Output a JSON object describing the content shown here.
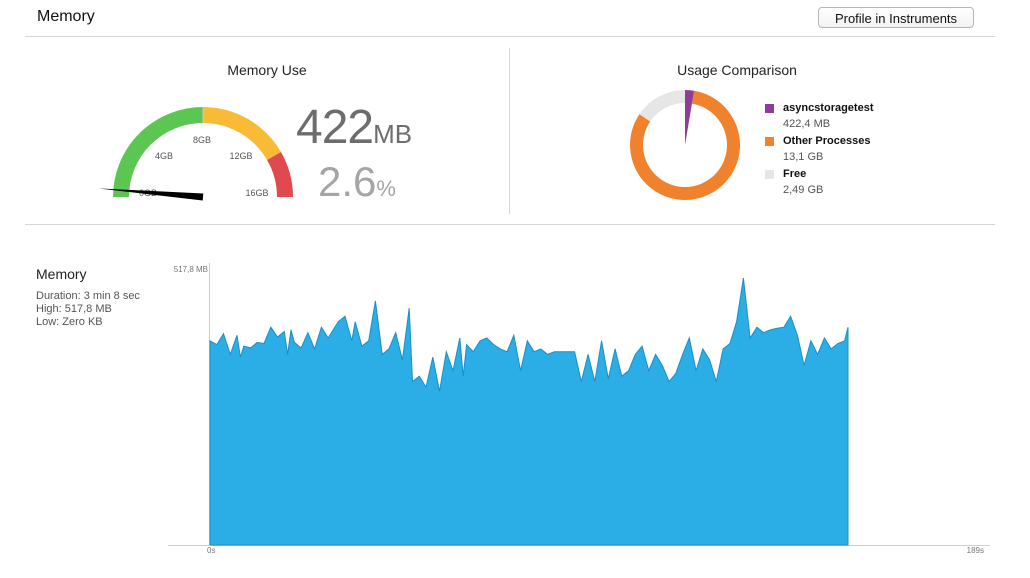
{
  "header": {
    "title": "Memory",
    "profile_button": "Profile in Instruments"
  },
  "gauge": {
    "title": "Memory Use",
    "tick_labels": [
      "4GB",
      "8GB",
      "12GB",
      "16GB",
      "0GB"
    ],
    "value_number": "422",
    "value_unit": "MB",
    "percent_number": "2.6",
    "percent_unit": "%",
    "percent_used": 2.6,
    "colors": {
      "green": "#5cc653",
      "yellow": "#f9bb35",
      "red": "#e0494d"
    }
  },
  "usage": {
    "title": "Usage Comparison",
    "items": [
      {
        "name": "asyncstoragetest",
        "value": "422,4 MB",
        "gb": 0.4224,
        "color": "#8e3d96"
      },
      {
        "name": "Other Processes",
        "value": "13,1 GB",
        "gb": 13.1,
        "color": "#f0822d"
      },
      {
        "name": "Free",
        "value": "2,49 GB",
        "gb": 2.49,
        "color": "#e6e6e6"
      }
    ]
  },
  "graph": {
    "title": "Memory",
    "duration": "Duration: 3 min 8 sec",
    "high": "High: 517,8 MB",
    "low": "Low: Zero KB"
  },
  "chart_data": {
    "type": "area",
    "ylabel_top": "517,8 MB",
    "x_start_label": "0s",
    "x_end_label": "189s",
    "xlim": [
      0,
      189
    ],
    "ylim": [
      0,
      517.8
    ],
    "color": "#2aaee5",
    "x": [
      0,
      2,
      4,
      6,
      8,
      9,
      10,
      12,
      14,
      16,
      18,
      20,
      22,
      23,
      24,
      25,
      27,
      29,
      31,
      33,
      35,
      38,
      40,
      42,
      43,
      45,
      47,
      49,
      51,
      53,
      55,
      57,
      59,
      60,
      62,
      64,
      66,
      68,
      70,
      72,
      74,
      75,
      76,
      78,
      80,
      82,
      84,
      86,
      88,
      90,
      92,
      94,
      96,
      98,
      100,
      102,
      104,
      106,
      108,
      110,
      112,
      114,
      116,
      118,
      120,
      122,
      124,
      126,
      128,
      130,
      132,
      134,
      136,
      138,
      140,
      142,
      144,
      146,
      148,
      150,
      152,
      154,
      156,
      158,
      160,
      162,
      164,
      166,
      168,
      170,
      172,
      174,
      176,
      178,
      180,
      182,
      184,
      186,
      188,
      189
    ],
    "y": [
      375,
      368,
      388,
      350,
      385,
      345,
      365,
      362,
      372,
      370,
      400,
      382,
      392,
      350,
      395,
      372,
      362,
      390,
      360,
      400,
      380,
      410,
      420,
      375,
      410,
      365,
      375,
      448,
      350,
      360,
      390,
      340,
      435,
      300,
      310,
      290,
      345,
      282,
      355,
      320,
      380,
      310,
      368,
      355,
      375,
      380,
      368,
      360,
      355,
      385,
      320,
      375,
      355,
      360,
      350,
      355,
      355,
      355,
      355,
      300,
      350,
      300,
      375,
      305,
      360,
      310,
      320,
      350,
      365,
      320,
      350,
      330,
      300,
      315,
      350,
      380,
      320,
      360,
      340,
      300,
      360,
      370,
      410,
      490,
      380,
      400,
      390,
      395,
      398,
      400,
      420,
      385,
      330,
      375,
      350,
      380,
      360,
      370,
      375,
      400
    ]
  }
}
